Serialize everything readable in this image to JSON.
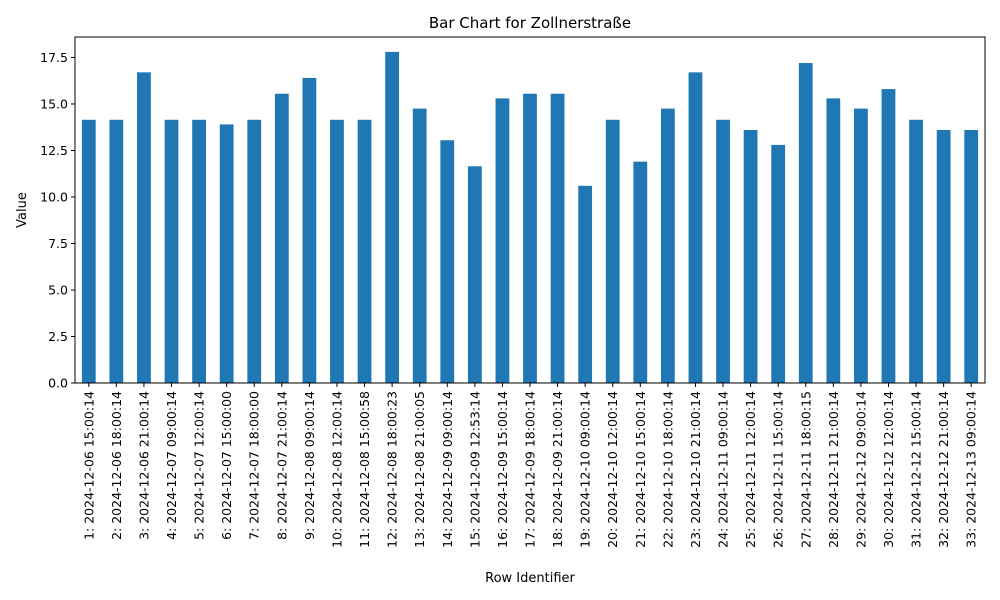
{
  "chart_data": {
    "type": "bar",
    "title": "Bar Chart for Zollnerstraße",
    "xlabel": "Row Identifier",
    "ylabel": "Value",
    "ylim": [
      0,
      18.6
    ],
    "yticks": [
      "0.0",
      "2.5",
      "5.0",
      "7.5",
      "10.0",
      "12.5",
      "15.0",
      "17.5"
    ],
    "grid": false,
    "legend": "none",
    "bar_color": "#1f77b4",
    "categories": [
      "1: 2024-12-06 15:00:14",
      "2: 2024-12-06 18:00:14",
      "3: 2024-12-06 21:00:14",
      "4: 2024-12-07 09:00:14",
      "5: 2024-12-07 12:00:14",
      "6: 2024-12-07 15:00:00",
      "7: 2024-12-07 18:00:00",
      "8: 2024-12-07 21:00:14",
      "9: 2024-12-08 09:00:14",
      "10: 2024-12-08 12:00:14",
      "11: 2024-12-08 15:00:58",
      "12: 2024-12-08 18:00:23",
      "13: 2024-12-08 21:00:05",
      "14: 2024-12-09 09:00:14",
      "15: 2024-12-09 12:53:14",
      "16: 2024-12-09 15:00:14",
      "17: 2024-12-09 18:00:14",
      "18: 2024-12-09 21:00:14",
      "19: 2024-12-10 09:00:14",
      "20: 2024-12-10 12:00:14",
      "21: 2024-12-10 15:00:14",
      "22: 2024-12-10 18:00:14",
      "23: 2024-12-10 21:00:14",
      "24: 2024-12-11 09:00:14",
      "25: 2024-12-11 12:00:14",
      "26: 2024-12-11 15:00:14",
      "27: 2024-12-11 18:00:15",
      "28: 2024-12-11 21:00:14",
      "29: 2024-12-12 09:00:14",
      "30: 2024-12-12 12:00:14",
      "31: 2024-12-12 15:00:14",
      "32: 2024-12-12 21:00:14",
      "33: 2024-12-13 09:00:14"
    ],
    "values": [
      14.15,
      14.15,
      16.7,
      14.15,
      14.15,
      13.9,
      14.15,
      15.55,
      16.4,
      14.15,
      14.15,
      17.8,
      14.75,
      13.05,
      11.65,
      15.3,
      15.55,
      15.55,
      10.6,
      14.15,
      11.9,
      14.75,
      16.7,
      14.15,
      13.6,
      12.8,
      17.2,
      15.3,
      14.75,
      15.8,
      14.15,
      13.6,
      13.6
    ]
  }
}
